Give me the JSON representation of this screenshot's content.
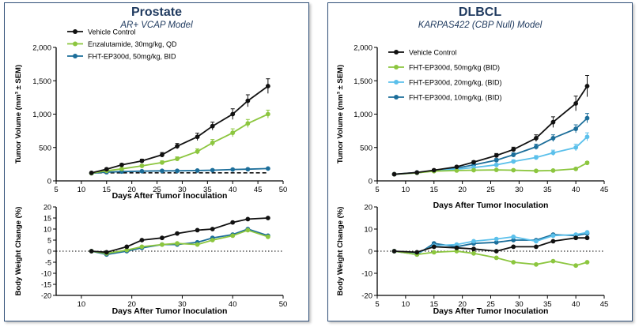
{
  "panels": [
    {
      "title": "Prostate",
      "subtitle": "AR+ VCAP Model",
      "colors": {
        "vehicle": "#111111",
        "s1": "#8cc63f",
        "s2": "#1c6e9a",
        "dashed": "#111111"
      },
      "chart_data": [
        {
          "type": "line",
          "ylabel": "Tumor Volume (mm³ ± SEM)",
          "xlabel": "Days After Tumor Inoculation",
          "xlim": [
            5,
            50
          ],
          "ylim": [
            0,
            2000
          ],
          "xticks": [
            "5",
            "10",
            "15",
            "20",
            "25",
            "30",
            "35",
            "40",
            "45",
            "50"
          ],
          "yticks": [
            "0",
            "500",
            "1,000",
            "1,500",
            "2,000"
          ],
          "legend": [
            "Vehicle  Control",
            "Enzalutamide, 30mg/kg, QD",
            "FHT-EP300d, 50mg/kg, BID"
          ],
          "series": [
            {
              "name": "Vehicle  Control",
              "x": [
                12,
                15,
                18,
                22,
                26,
                29,
                33,
                36,
                40,
                43,
                47
              ],
              "y": [
                120,
                175,
                240,
                300,
                390,
                520,
                660,
                820,
                1000,
                1200,
                1420
              ],
              "err": [
                10,
                15,
                20,
                25,
                35,
                40,
                55,
                60,
                80,
                90,
                110
              ]
            },
            {
              "name": "Enzalutamide, 30mg/kg, QD",
              "x": [
                12,
                15,
                18,
                22,
                26,
                29,
                33,
                36,
                40,
                43,
                47
              ],
              "y": [
                115,
                150,
                180,
                225,
                275,
                330,
                440,
                570,
                720,
                860,
                1000
              ],
              "err": [
                10,
                12,
                15,
                20,
                25,
                30,
                40,
                50,
                60,
                60,
                60
              ]
            },
            {
              "name": "FHT-EP300d, 50mg/kg, BID",
              "x": [
                12,
                15,
                18,
                22,
                26,
                29,
                33,
                36,
                40,
                43,
                47
              ],
              "y": [
                115,
                130,
                140,
                145,
                150,
                150,
                155,
                160,
                170,
                175,
                185
              ],
              "err": [
                5,
                8,
                8,
                10,
                10,
                10,
                10,
                10,
                10,
                10,
                10
              ]
            }
          ],
          "reference_line": {
            "style": "dashed",
            "y": 120,
            "x": [
              12,
              47
            ]
          }
        },
        {
          "type": "line",
          "ylabel": "Body Weight Change (%)",
          "xlabel": "Days After Tumor Inoculation",
          "xlim": [
            5,
            50
          ],
          "ylim": [
            -20,
            20
          ],
          "xticks": [
            "10",
            "20",
            "30",
            "40",
            "50"
          ],
          "yticks": [
            "-20",
            "-15",
            "-10",
            "-5",
            "0",
            "5",
            "10",
            "15",
            "20"
          ],
          "series": [
            {
              "name": "Vehicle  Control",
              "x": [
                12,
                15,
                19,
                22,
                26,
                29,
                33,
                36,
                40,
                43,
                47
              ],
              "y": [
                0,
                -0.5,
                2,
                5,
                6,
                8,
                9.5,
                10,
                13,
                14.5,
                15
              ]
            },
            {
              "name": "Enzalutamide, 30mg/kg, QD",
              "x": [
                12,
                15,
                19,
                22,
                26,
                29,
                33,
                36,
                40,
                43,
                47
              ],
              "y": [
                0,
                -1,
                0.5,
                2,
                3,
                3.5,
                3,
                5,
                7,
                9.5,
                6.5
              ]
            },
            {
              "name": "FHT-EP300d, 50mg/kg, BID",
              "x": [
                12,
                15,
                19,
                22,
                26,
                29,
                33,
                36,
                40,
                43,
                47
              ],
              "y": [
                0,
                -1.5,
                0,
                1.5,
                3,
                3,
                4,
                6,
                7.5,
                10,
                7
              ]
            }
          ]
        }
      ]
    },
    {
      "title": "DLBCL",
      "subtitle": "KARPAS422 (CBP Null) Model",
      "colors": {
        "vehicle": "#111111",
        "s1": "#8cc63f",
        "s2": "#5bc0eb",
        "s3": "#1c6e9a"
      },
      "chart_data": [
        {
          "type": "line",
          "ylabel": "Tumor Volume (mm³ ± SEM)",
          "xlabel": "Days After Tumor Inoculation",
          "xlim": [
            5,
            45
          ],
          "ylim": [
            0,
            2000
          ],
          "xticks": [
            "5",
            "10",
            "15",
            "20",
            "25",
            "30",
            "35",
            "40",
            "45"
          ],
          "yticks": [
            "0",
            "500",
            "1,000",
            "1,500",
            "2,000"
          ],
          "legend": [
            "Vehicle Control",
            "FHT-EP300d, 50mg/kg (BID)",
            "FHT-EP300d, 20mg/kg, (BID)",
            "FHT-EP300d, 10mg/kg, (BID)"
          ],
          "series": [
            {
              "name": "Vehicle Control",
              "x": [
                8,
                12,
                15,
                19,
                22,
                26,
                29,
                33,
                36,
                40,
                42
              ],
              "y": [
                100,
                125,
                160,
                210,
                280,
                380,
                470,
                640,
                880,
                1160,
                1420
              ],
              "err": [
                8,
                10,
                12,
                15,
                20,
                30,
                35,
                50,
                80,
                110,
                160
              ]
            },
            {
              "name": "FHT-EP300d, 50mg/kg (BID)",
              "x": [
                8,
                12,
                15,
                19,
                22,
                26,
                29,
                33,
                36,
                40,
                42
              ],
              "y": [
                100,
                120,
                145,
                155,
                160,
                165,
                160,
                150,
                155,
                180,
                270
              ],
              "err": [
                5,
                5,
                8,
                8,
                10,
                10,
                10,
                10,
                10,
                15,
                20
              ]
            },
            {
              "name": "FHT-EP300d, 20mg/kg, (BID)",
              "x": [
                8,
                12,
                15,
                19,
                22,
                26,
                29,
                33,
                36,
                40,
                42
              ],
              "y": [
                100,
                120,
                150,
                175,
                200,
                240,
                290,
                350,
                420,
                500,
                660
              ],
              "err": [
                5,
                8,
                10,
                10,
                15,
                20,
                25,
                30,
                40,
                50,
                60
              ]
            },
            {
              "name": "FHT-EP300d, 10mg/kg, (BID)",
              "x": [
                8,
                12,
                15,
                19,
                22,
                26,
                29,
                33,
                36,
                40,
                42
              ],
              "y": [
                100,
                125,
                150,
                190,
                240,
                310,
                390,
                510,
                640,
                780,
                940
              ],
              "err": [
                5,
                8,
                10,
                15,
                20,
                25,
                30,
                40,
                50,
                60,
                70
              ]
            }
          ]
        },
        {
          "type": "line",
          "ylabel": "Body Weight Change (%)",
          "xlabel": "Days After Tumor Inoculation",
          "xlim": [
            5,
            45
          ],
          "ylim": [
            -20,
            20
          ],
          "xticks": [
            "5",
            "10",
            "15",
            "20",
            "25",
            "30",
            "35",
            "40",
            "45"
          ],
          "yticks": [
            "-20",
            "-10",
            "0",
            "10",
            "20"
          ],
          "series": [
            {
              "name": "Vehicle Control",
              "x": [
                8,
                12,
                15,
                19,
                22,
                26,
                29,
                33,
                36,
                40,
                42
              ],
              "y": [
                0,
                -0.5,
                2,
                1.5,
                1,
                0,
                2,
                2,
                4.5,
                6,
                6
              ]
            },
            {
              "name": "FHT-EP300d, 50mg/kg (BID)",
              "x": [
                8,
                12,
                15,
                19,
                22,
                26,
                29,
                33,
                36,
                40,
                42
              ],
              "y": [
                0,
                -1.5,
                -0.5,
                0,
                -1,
                -3,
                -5,
                -6,
                -4.5,
                -6.5,
                -5
              ]
            },
            {
              "name": "FHT-EP300d, 20mg/kg, (BID)",
              "x": [
                8,
                12,
                15,
                19,
                22,
                26,
                29,
                33,
                36,
                40,
                42
              ],
              "y": [
                0,
                -1,
                2.5,
                3,
                4.5,
                5.5,
                6.5,
                4.5,
                7,
                7.5,
                8.5
              ]
            },
            {
              "name": "FHT-EP300d, 10mg/kg, (BID)",
              "x": [
                8,
                12,
                15,
                19,
                22,
                26,
                29,
                33,
                36,
                40,
                42
              ],
              "y": [
                0,
                -1.5,
                3.5,
                2,
                3.5,
                4,
                5,
                5,
                7.5,
                7,
                8
              ]
            }
          ]
        }
      ]
    }
  ]
}
